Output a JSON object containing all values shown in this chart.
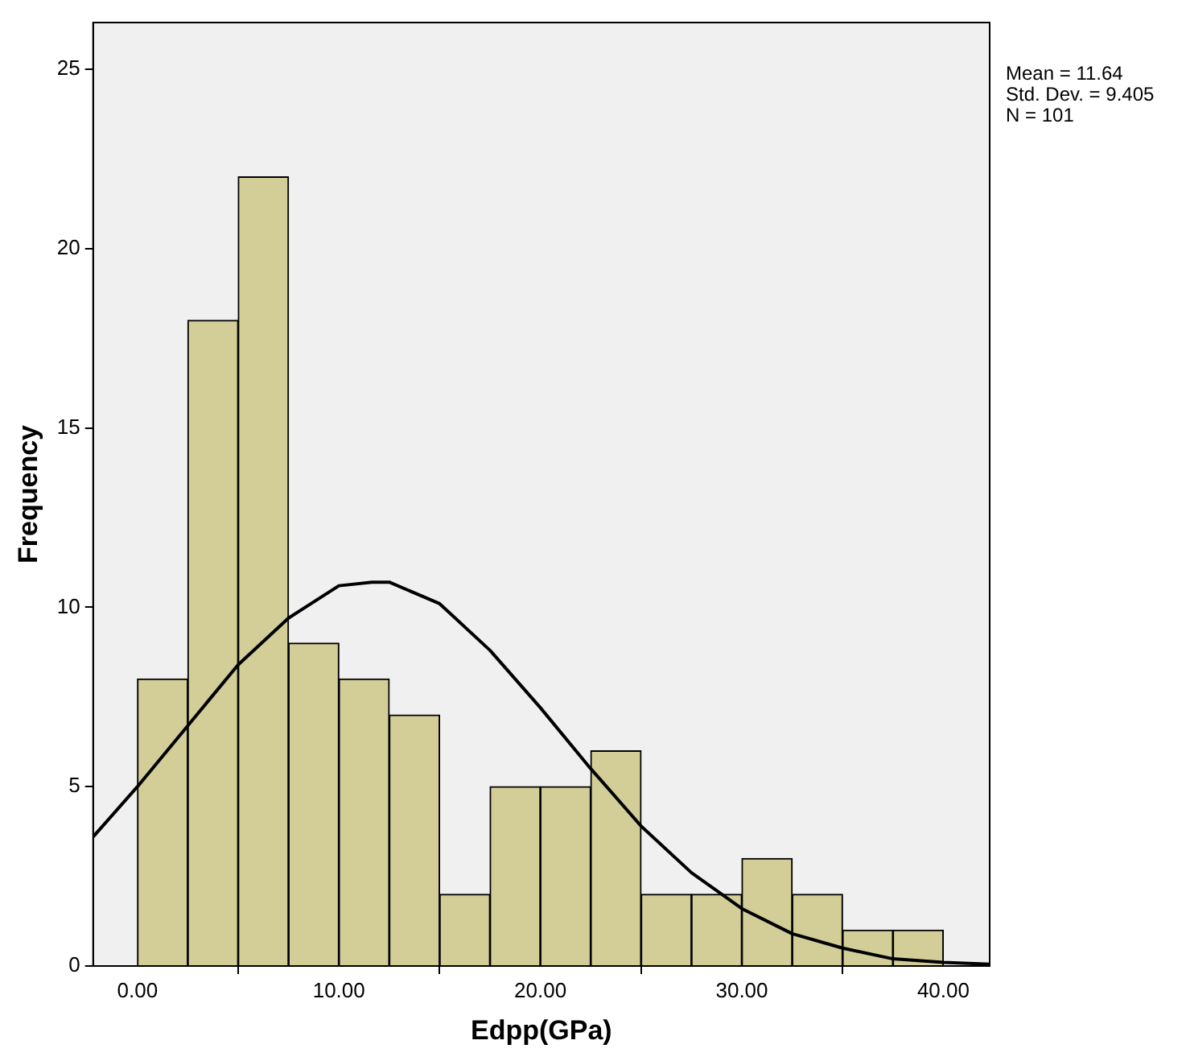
{
  "chart_data": {
    "type": "histogram",
    "xlabel": "Edpp(GPa)",
    "ylabel": "Frequency",
    "bins": [
      0,
      2.5,
      5,
      7.5,
      10,
      12.5,
      15,
      17.5,
      20,
      22.5,
      25,
      27.5,
      30,
      32.5,
      35,
      37.5,
      40
    ],
    "values": [
      8,
      18,
      22,
      9,
      8,
      7,
      2,
      5,
      5,
      6,
      2,
      2,
      3,
      2,
      1,
      1
    ],
    "color": "#d3ce98",
    "series": [
      {
        "type": "line",
        "color": "#000000",
        "x": [
          -2.2,
          0,
          2.5,
          5,
          7.5,
          10,
          11.64,
          12.5,
          15,
          17.5,
          20,
          22.5,
          25,
          27.5,
          30,
          32.5,
          35,
          37.5,
          40,
          42.3
        ],
        "values": [
          3.6,
          5.0,
          6.7,
          8.4,
          9.7,
          10.6,
          10.7,
          10.7,
          10.1,
          8.8,
          7.2,
          5.5,
          3.9,
          2.6,
          1.6,
          0.9,
          0.5,
          0.2,
          0.1,
          0.05
        ]
      }
    ],
    "xlim": [
      -2.2,
      42.3
    ],
    "xticks": [
      {
        "value": 0,
        "label": "0.00"
      },
      {
        "value": 10,
        "label": "10.00"
      },
      {
        "value": 20,
        "label": "20.00"
      },
      {
        "value": 30,
        "label": "30.00"
      },
      {
        "value": 40,
        "label": "40.00"
      }
    ],
    "ylim": [
      0,
      26.3
    ],
    "yticks": [
      0,
      5,
      10,
      15,
      20,
      25
    ],
    "grid": false,
    "legend": false,
    "marker": "none",
    "line_style": "solid",
    "annotations": [
      "Mean = 11.64",
      "Std. Dev. = 9.405",
      "N = 101"
    ]
  }
}
